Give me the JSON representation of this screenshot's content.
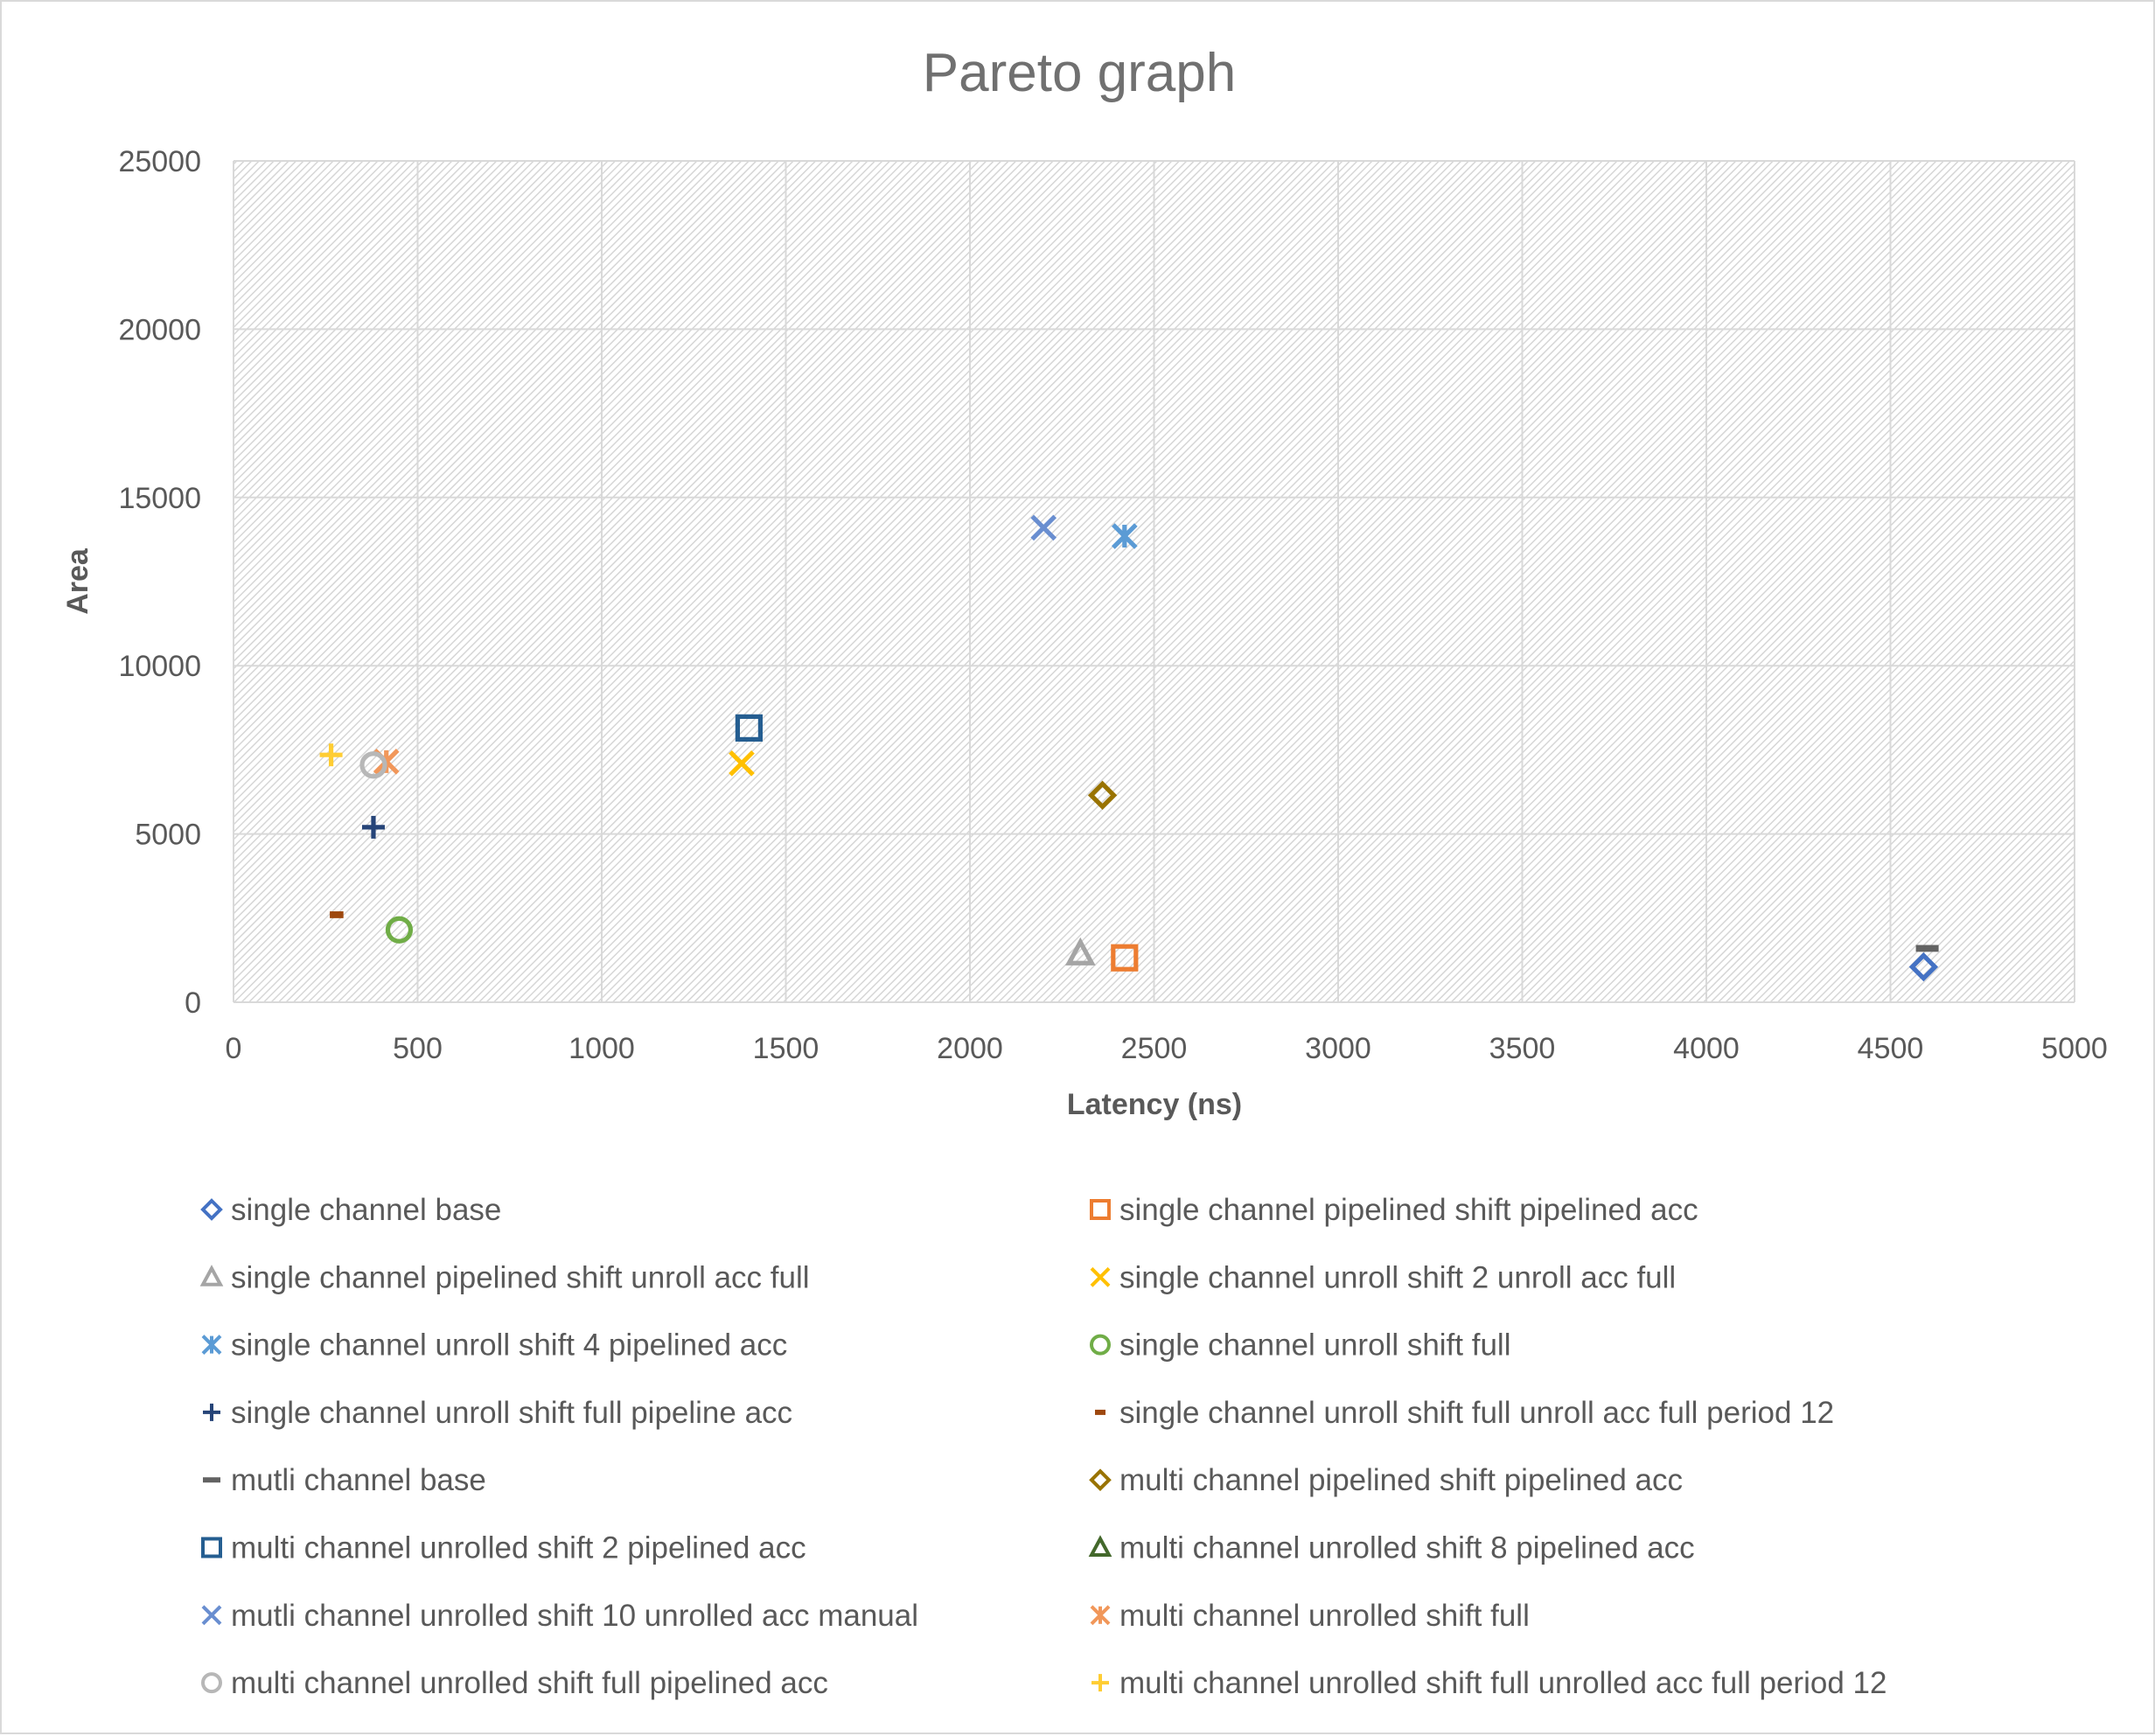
{
  "chart_data": {
    "type": "scatter",
    "title": "Pareto graph",
    "xlabel": "Latency (ns)",
    "ylabel": "Area",
    "xlim": [
      0,
      5000
    ],
    "ylim": [
      0,
      25000
    ],
    "xticks": [
      "0",
      "500",
      "1000",
      "1500",
      "2000",
      "2500",
      "3000",
      "3500",
      "4000",
      "4500",
      "5000"
    ],
    "yticks": [
      "0",
      "5000",
      "10000",
      "15000",
      "20000",
      "25000"
    ],
    "grid": true,
    "legend_position": "bottom",
    "series": [
      {
        "name": "single channel base",
        "marker": "diamond",
        "color": "#4472C4",
        "points": [
          [
            4590,
            1050
          ]
        ]
      },
      {
        "name": "single channel pipelined shift pipelined acc",
        "marker": "square",
        "color": "#ED7D31",
        "points": [
          [
            2420,
            1320
          ]
        ]
      },
      {
        "name": "single channel pipelined shift unroll acc full",
        "marker": "triangle",
        "color": "#A5A5A5",
        "points": [
          [
            2300,
            1450
          ]
        ]
      },
      {
        "name": "single channel unroll shift 2 unroll acc full",
        "marker": "x",
        "color": "#FFC000",
        "points": [
          [
            1380,
            7100
          ]
        ]
      },
      {
        "name": "single channel unroll shift 4 pipelined acc",
        "marker": "star",
        "color": "#5B9BD5",
        "points": [
          [
            2420,
            13850
          ]
        ]
      },
      {
        "name": "single channel unroll shift full",
        "marker": "circle",
        "color": "#70AD47",
        "points": [
          [
            450,
            2150
          ]
        ]
      },
      {
        "name": "single channel unroll shift full pipeline acc",
        "marker": "plus",
        "color": "#264478",
        "points": [
          [
            380,
            5200
          ]
        ]
      },
      {
        "name": "single channel unroll shift full unroll acc full period 12",
        "marker": "short-dash",
        "color": "#9E480E",
        "points": [
          [
            280,
            2600
          ]
        ]
      },
      {
        "name": "mutli channel base",
        "marker": "dash",
        "color": "#636363",
        "points": [
          [
            4600,
            1600
          ]
        ]
      },
      {
        "name": "multi channel pipelined shift pipelined acc",
        "marker": "diamond",
        "color": "#997300",
        "points": [
          [
            2360,
            6150
          ]
        ]
      },
      {
        "name": "multi channel unrolled shift 2 pipelined acc",
        "marker": "square",
        "color": "#255E91",
        "points": [
          [
            1400,
            8150
          ]
        ]
      },
      {
        "name": "multi channel unrolled shift 8 pipelined acc",
        "marker": "triangle",
        "color": "#43682B",
        "points": []
      },
      {
        "name": "mutli channel unrolled shift 10 unrolled acc manual",
        "marker": "x",
        "color": "#698ED0",
        "points": [
          [
            2200,
            14100
          ]
        ]
      },
      {
        "name": "multi channel unrolled shift full",
        "marker": "star",
        "color": "#F1975A",
        "points": [
          [
            415,
            7150
          ]
        ]
      },
      {
        "name": "multi channel unrolled shift full pipelined acc",
        "marker": "circle",
        "color": "#B7B7B7",
        "points": [
          [
            380,
            7050
          ]
        ]
      },
      {
        "name": "multi channel unrolled shift full unrolled acc full period 12",
        "marker": "plus",
        "color": "#FFCD33",
        "points": [
          [
            265,
            7350
          ]
        ]
      }
    ]
  }
}
